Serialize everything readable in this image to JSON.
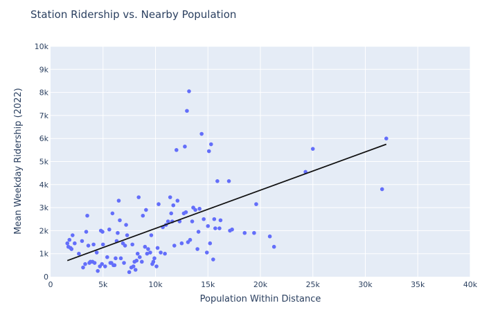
{
  "chart_data": {
    "type": "scatter",
    "title": "Station Ridership vs. Nearby Population",
    "xlabel": "Population Within Distance",
    "ylabel": "Mean Weekday Ridership (2022)",
    "xlim": [
      0,
      40000
    ],
    "ylim": [
      0,
      10000
    ],
    "x_ticks": [
      0,
      5000,
      10000,
      15000,
      20000,
      25000,
      30000,
      35000,
      40000
    ],
    "x_tick_labels": [
      "0",
      "5k",
      "10k",
      "15k",
      "20k",
      "25k",
      "30k",
      "35k",
      "40k"
    ],
    "y_ticks": [
      0,
      1000,
      2000,
      3000,
      4000,
      5000,
      6000,
      7000,
      8000,
      9000,
      10000
    ],
    "y_tick_labels": [
      "0",
      "1k",
      "2k",
      "3k",
      "4k",
      "5k",
      "6k",
      "7k",
      "8k",
      "9k",
      "10k"
    ],
    "grid": true,
    "colors": {
      "background": "#E5ECF6",
      "grid": "#ffffff",
      "marker": "#636EFA",
      "trendline": "#111111",
      "text": "#2A3F5F"
    },
    "points": [
      [
        1600,
        1450
      ],
      [
        1700,
        1300
      ],
      [
        1800,
        1600
      ],
      [
        1900,
        1250
      ],
      [
        2000,
        1200
      ],
      [
        2100,
        1800
      ],
      [
        2300,
        1450
      ],
      [
        2700,
        1000
      ],
      [
        3000,
        1550
      ],
      [
        3100,
        400
      ],
      [
        3300,
        550
      ],
      [
        3400,
        1950
      ],
      [
        3500,
        2650
      ],
      [
        3600,
        1350
      ],
      [
        3700,
        600
      ],
      [
        3800,
        650
      ],
      [
        4000,
        650
      ],
      [
        4100,
        1400
      ],
      [
        4200,
        600
      ],
      [
        4400,
        1050
      ],
      [
        4500,
        250
      ],
      [
        4700,
        450
      ],
      [
        4800,
        2000
      ],
      [
        4900,
        550
      ],
      [
        4950,
        1950
      ],
      [
        5000,
        1400
      ],
      [
        5200,
        450
      ],
      [
        5400,
        850
      ],
      [
        5600,
        2050
      ],
      [
        5700,
        600
      ],
      [
        5800,
        600
      ],
      [
        5900,
        2750
      ],
      [
        6000,
        500
      ],
      [
        6100,
        500
      ],
      [
        6200,
        800
      ],
      [
        6300,
        1550
      ],
      [
        6400,
        1900
      ],
      [
        6500,
        3300
      ],
      [
        6600,
        2450
      ],
      [
        6700,
        800
      ],
      [
        6900,
        1450
      ],
      [
        7000,
        600
      ],
      [
        7100,
        1350
      ],
      [
        7200,
        2250
      ],
      [
        7300,
        1800
      ],
      [
        7500,
        200
      ],
      [
        7700,
        400
      ],
      [
        7800,
        1400
      ],
      [
        7900,
        450
      ],
      [
        8000,
        650
      ],
      [
        8100,
        300
      ],
      [
        8200,
        700
      ],
      [
        8300,
        1000
      ],
      [
        8400,
        3450
      ],
      [
        8500,
        850
      ],
      [
        8700,
        650
      ],
      [
        8800,
        2650
      ],
      [
        9000,
        1300
      ],
      [
        9100,
        2900
      ],
      [
        9200,
        1000
      ],
      [
        9300,
        1200
      ],
      [
        9500,
        1050
      ],
      [
        9600,
        1800
      ],
      [
        9700,
        550
      ],
      [
        9800,
        650
      ],
      [
        9900,
        800
      ],
      [
        10100,
        450
      ],
      [
        10200,
        1250
      ],
      [
        10300,
        3150
      ],
      [
        10500,
        1050
      ],
      [
        10700,
        2150
      ],
      [
        10900,
        1000
      ],
      [
        11000,
        2250
      ],
      [
        11200,
        2400
      ],
      [
        11400,
        3450
      ],
      [
        11500,
        2750
      ],
      [
        11600,
        2400
      ],
      [
        11700,
        3100
      ],
      [
        11800,
        1350
      ],
      [
        12000,
        5500
      ],
      [
        12100,
        3300
      ],
      [
        12300,
        2400
      ],
      [
        12500,
        1450
      ],
      [
        12700,
        2750
      ],
      [
        12800,
        5650
      ],
      [
        12900,
        2800
      ],
      [
        13000,
        7200
      ],
      [
        13100,
        1500
      ],
      [
        13200,
        8050
      ],
      [
        13300,
        1600
      ],
      [
        13500,
        2400
      ],
      [
        13600,
        3000
      ],
      [
        13800,
        2900
      ],
      [
        14000,
        1200
      ],
      [
        14100,
        1950
      ],
      [
        14200,
        2950
      ],
      [
        14400,
        6200
      ],
      [
        14600,
        2500
      ],
      [
        14900,
        1050
      ],
      [
        15000,
        2200
      ],
      [
        15100,
        5450
      ],
      [
        15200,
        1450
      ],
      [
        15300,
        5750
      ],
      [
        15500,
        750
      ],
      [
        15600,
        2500
      ],
      [
        15700,
        2100
      ],
      [
        15900,
        4150
      ],
      [
        16100,
        2100
      ],
      [
        16200,
        2450
      ],
      [
        17000,
        4150
      ],
      [
        17100,
        2000
      ],
      [
        17300,
        2050
      ],
      [
        18500,
        1900
      ],
      [
        19400,
        1900
      ],
      [
        19600,
        3150
      ],
      [
        20900,
        1750
      ],
      [
        21300,
        1300
      ],
      [
        24300,
        4550
      ],
      [
        25000,
        5550
      ],
      [
        31600,
        3800
      ],
      [
        32000,
        6000
      ]
    ],
    "trendline": {
      "x": [
        1600,
        32000
      ],
      "y": [
        700,
        5750
      ]
    }
  }
}
